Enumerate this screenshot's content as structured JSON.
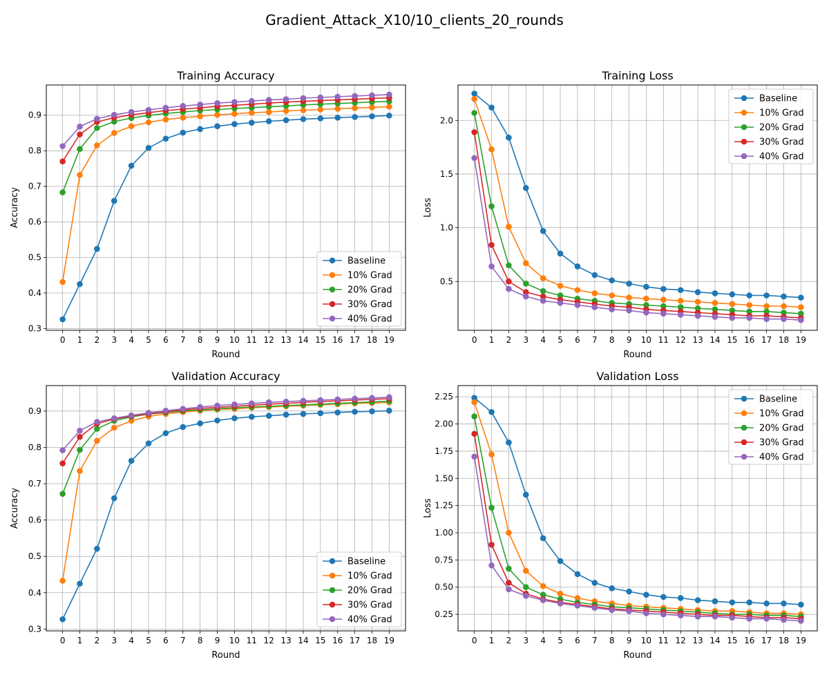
{
  "figure_title": "Gradient_Attack_X10/10_clients_20_rounds",
  "colors": {
    "Baseline": "#1f77b4",
    "10% Grad": "#ff7f0e",
    "20% Grad": "#2ca02c",
    "30% Grad": "#d62728",
    "40% Grad": "#9467bd"
  },
  "chart_data": [
    {
      "type": "line",
      "title": "Training Accuracy",
      "xlabel": "Round",
      "ylabel": "Accuracy",
      "x": [
        0,
        1,
        2,
        3,
        4,
        5,
        6,
        7,
        8,
        9,
        10,
        11,
        12,
        13,
        14,
        15,
        16,
        17,
        18,
        19
      ],
      "xlim": [
        -0.95,
        19.95
      ],
      "ylim": [
        0.295,
        0.985
      ],
      "yticks": [
        "0.3",
        "0.4",
        "0.5",
        "0.6",
        "0.7",
        "0.8",
        "0.9"
      ],
      "grid": true,
      "legend_position": "lower-right",
      "series": [
        {
          "name": "Baseline",
          "values": [
            0.326,
            0.425,
            0.524,
            0.659,
            0.758,
            0.808,
            0.834,
            0.851,
            0.861,
            0.869,
            0.875,
            0.879,
            0.883,
            0.886,
            0.889,
            0.891,
            0.893,
            0.895,
            0.897,
            0.899
          ]
        },
        {
          "name": "10% Grad",
          "values": [
            0.431,
            0.732,
            0.815,
            0.85,
            0.869,
            0.88,
            0.888,
            0.893,
            0.897,
            0.901,
            0.904,
            0.907,
            0.909,
            0.912,
            0.914,
            0.916,
            0.918,
            0.92,
            0.922,
            0.924
          ]
        },
        {
          "name": "20% Grad",
          "values": [
            0.683,
            0.805,
            0.864,
            0.882,
            0.892,
            0.899,
            0.905,
            0.909,
            0.913,
            0.916,
            0.919,
            0.921,
            0.924,
            0.926,
            0.929,
            0.931,
            0.933,
            0.935,
            0.937,
            0.939
          ]
        },
        {
          "name": "30% Grad",
          "values": [
            0.77,
            0.846,
            0.881,
            0.893,
            0.901,
            0.907,
            0.913,
            0.917,
            0.921,
            0.925,
            0.928,
            0.931,
            0.934,
            0.937,
            0.939,
            0.941,
            0.943,
            0.945,
            0.947,
            0.949
          ]
        },
        {
          "name": "40% Grad",
          "values": [
            0.813,
            0.868,
            0.89,
            0.901,
            0.909,
            0.915,
            0.921,
            0.926,
            0.93,
            0.934,
            0.937,
            0.94,
            0.943,
            0.945,
            0.948,
            0.95,
            0.952,
            0.954,
            0.956,
            0.958
          ]
        }
      ]
    },
    {
      "type": "line",
      "title": "Training Loss",
      "xlabel": "Round",
      "ylabel": "Loss",
      "x": [
        0,
        1,
        2,
        3,
        4,
        5,
        6,
        7,
        8,
        9,
        10,
        11,
        12,
        13,
        14,
        15,
        16,
        17,
        18,
        19
      ],
      "xlim": [
        -0.95,
        19.95
      ],
      "ylim": [
        0.045,
        2.33
      ],
      "yticks": [
        "0.5",
        "1.0",
        "1.5",
        "2.0"
      ],
      "grid": true,
      "legend_position": "upper-right",
      "series": [
        {
          "name": "Baseline",
          "values": [
            2.25,
            2.12,
            1.84,
            1.37,
            0.97,
            0.76,
            0.64,
            0.56,
            0.51,
            0.48,
            0.45,
            0.43,
            0.42,
            0.4,
            0.39,
            0.38,
            0.37,
            0.37,
            0.36,
            0.35
          ]
        },
        {
          "name": "10% Grad",
          "values": [
            2.2,
            1.73,
            1.01,
            0.67,
            0.53,
            0.46,
            0.42,
            0.39,
            0.37,
            0.35,
            0.34,
            0.33,
            0.32,
            0.31,
            0.3,
            0.29,
            0.28,
            0.27,
            0.27,
            0.26
          ]
        },
        {
          "name": "20% Grad",
          "values": [
            2.07,
            1.2,
            0.65,
            0.48,
            0.41,
            0.37,
            0.34,
            0.32,
            0.3,
            0.29,
            0.28,
            0.27,
            0.26,
            0.25,
            0.24,
            0.23,
            0.22,
            0.22,
            0.21,
            0.2
          ]
        },
        {
          "name": "30% Grad",
          "values": [
            1.89,
            0.84,
            0.5,
            0.4,
            0.36,
            0.33,
            0.31,
            0.29,
            0.27,
            0.26,
            0.24,
            0.23,
            0.22,
            0.21,
            0.2,
            0.19,
            0.18,
            0.18,
            0.17,
            0.16
          ]
        },
        {
          "name": "40% Grad",
          "values": [
            1.65,
            0.64,
            0.43,
            0.36,
            0.32,
            0.3,
            0.28,
            0.26,
            0.24,
            0.23,
            0.21,
            0.2,
            0.19,
            0.18,
            0.17,
            0.16,
            0.16,
            0.15,
            0.15,
            0.14
          ]
        }
      ]
    },
    {
      "type": "line",
      "title": "Validation Accuracy",
      "xlabel": "Round",
      "ylabel": "Accuracy",
      "x": [
        0,
        1,
        2,
        3,
        4,
        5,
        6,
        7,
        8,
        9,
        10,
        11,
        12,
        13,
        14,
        15,
        16,
        17,
        18,
        19
      ],
      "xlim": [
        -0.95,
        19.95
      ],
      "ylim": [
        0.295,
        0.97
      ],
      "yticks": [
        "0.3",
        "0.4",
        "0.5",
        "0.6",
        "0.7",
        "0.8",
        "0.9"
      ],
      "grid": true,
      "legend_position": "lower-right",
      "series": [
        {
          "name": "Baseline",
          "values": [
            0.327,
            0.425,
            0.521,
            0.66,
            0.763,
            0.811,
            0.839,
            0.856,
            0.866,
            0.874,
            0.88,
            0.884,
            0.887,
            0.89,
            0.892,
            0.894,
            0.896,
            0.898,
            0.899,
            0.901
          ]
        },
        {
          "name": "10% Grad",
          "values": [
            0.433,
            0.735,
            0.818,
            0.854,
            0.873,
            0.885,
            0.892,
            0.897,
            0.901,
            0.904,
            0.906,
            0.909,
            0.911,
            0.913,
            0.915,
            0.917,
            0.919,
            0.921,
            0.922,
            0.924
          ]
        },
        {
          "name": "20% Grad",
          "values": [
            0.672,
            0.793,
            0.851,
            0.873,
            0.884,
            0.891,
            0.896,
            0.9,
            0.903,
            0.906,
            0.909,
            0.911,
            0.913,
            0.915,
            0.917,
            0.919,
            0.921,
            0.923,
            0.925,
            0.927
          ]
        },
        {
          "name": "30% Grad",
          "values": [
            0.756,
            0.829,
            0.865,
            0.878,
            0.886,
            0.892,
            0.898,
            0.903,
            0.907,
            0.91,
            0.913,
            0.916,
            0.919,
            0.921,
            0.924,
            0.926,
            0.928,
            0.93,
            0.932,
            0.934
          ]
        },
        {
          "name": "40% Grad",
          "values": [
            0.792,
            0.846,
            0.87,
            0.88,
            0.888,
            0.895,
            0.901,
            0.906,
            0.911,
            0.915,
            0.918,
            0.921,
            0.924,
            0.926,
            0.928,
            0.93,
            0.932,
            0.934,
            0.936,
            0.938
          ]
        }
      ]
    },
    {
      "type": "line",
      "title": "Validation Loss",
      "xlabel": "Round",
      "ylabel": "Loss",
      "x": [
        0,
        1,
        2,
        3,
        4,
        5,
        6,
        7,
        8,
        9,
        10,
        11,
        12,
        13,
        14,
        15,
        16,
        17,
        18,
        19
      ],
      "xlim": [
        -0.95,
        19.95
      ],
      "ylim": [
        0.098,
        2.353
      ],
      "yticks": [
        "0.25",
        "0.50",
        "0.75",
        "1.00",
        "1.25",
        "1.50",
        "1.75",
        "2.00",
        "2.25"
      ],
      "grid": true,
      "legend_position": "upper-right",
      "series": [
        {
          "name": "Baseline",
          "values": [
            2.24,
            2.11,
            1.83,
            1.35,
            0.95,
            0.74,
            0.62,
            0.54,
            0.49,
            0.46,
            0.43,
            0.41,
            0.4,
            0.38,
            0.37,
            0.36,
            0.36,
            0.35,
            0.35,
            0.34
          ]
        },
        {
          "name": "10% Grad",
          "values": [
            2.2,
            1.72,
            1.0,
            0.65,
            0.51,
            0.44,
            0.4,
            0.37,
            0.35,
            0.33,
            0.32,
            0.31,
            0.3,
            0.29,
            0.28,
            0.28,
            0.27,
            0.26,
            0.26,
            0.25
          ]
        },
        {
          "name": "20% Grad",
          "values": [
            2.07,
            1.23,
            0.67,
            0.5,
            0.43,
            0.39,
            0.36,
            0.34,
            0.32,
            0.31,
            0.3,
            0.29,
            0.28,
            0.27,
            0.26,
            0.25,
            0.25,
            0.24,
            0.24,
            0.23
          ]
        },
        {
          "name": "30% Grad",
          "values": [
            1.91,
            0.89,
            0.54,
            0.44,
            0.39,
            0.36,
            0.34,
            0.32,
            0.3,
            0.29,
            0.28,
            0.27,
            0.26,
            0.25,
            0.24,
            0.24,
            0.23,
            0.22,
            0.22,
            0.21
          ]
        },
        {
          "name": "40% Grad",
          "values": [
            1.7,
            0.7,
            0.48,
            0.42,
            0.38,
            0.35,
            0.33,
            0.31,
            0.29,
            0.28,
            0.26,
            0.25,
            0.24,
            0.23,
            0.23,
            0.22,
            0.21,
            0.21,
            0.2,
            0.19
          ]
        }
      ]
    }
  ]
}
